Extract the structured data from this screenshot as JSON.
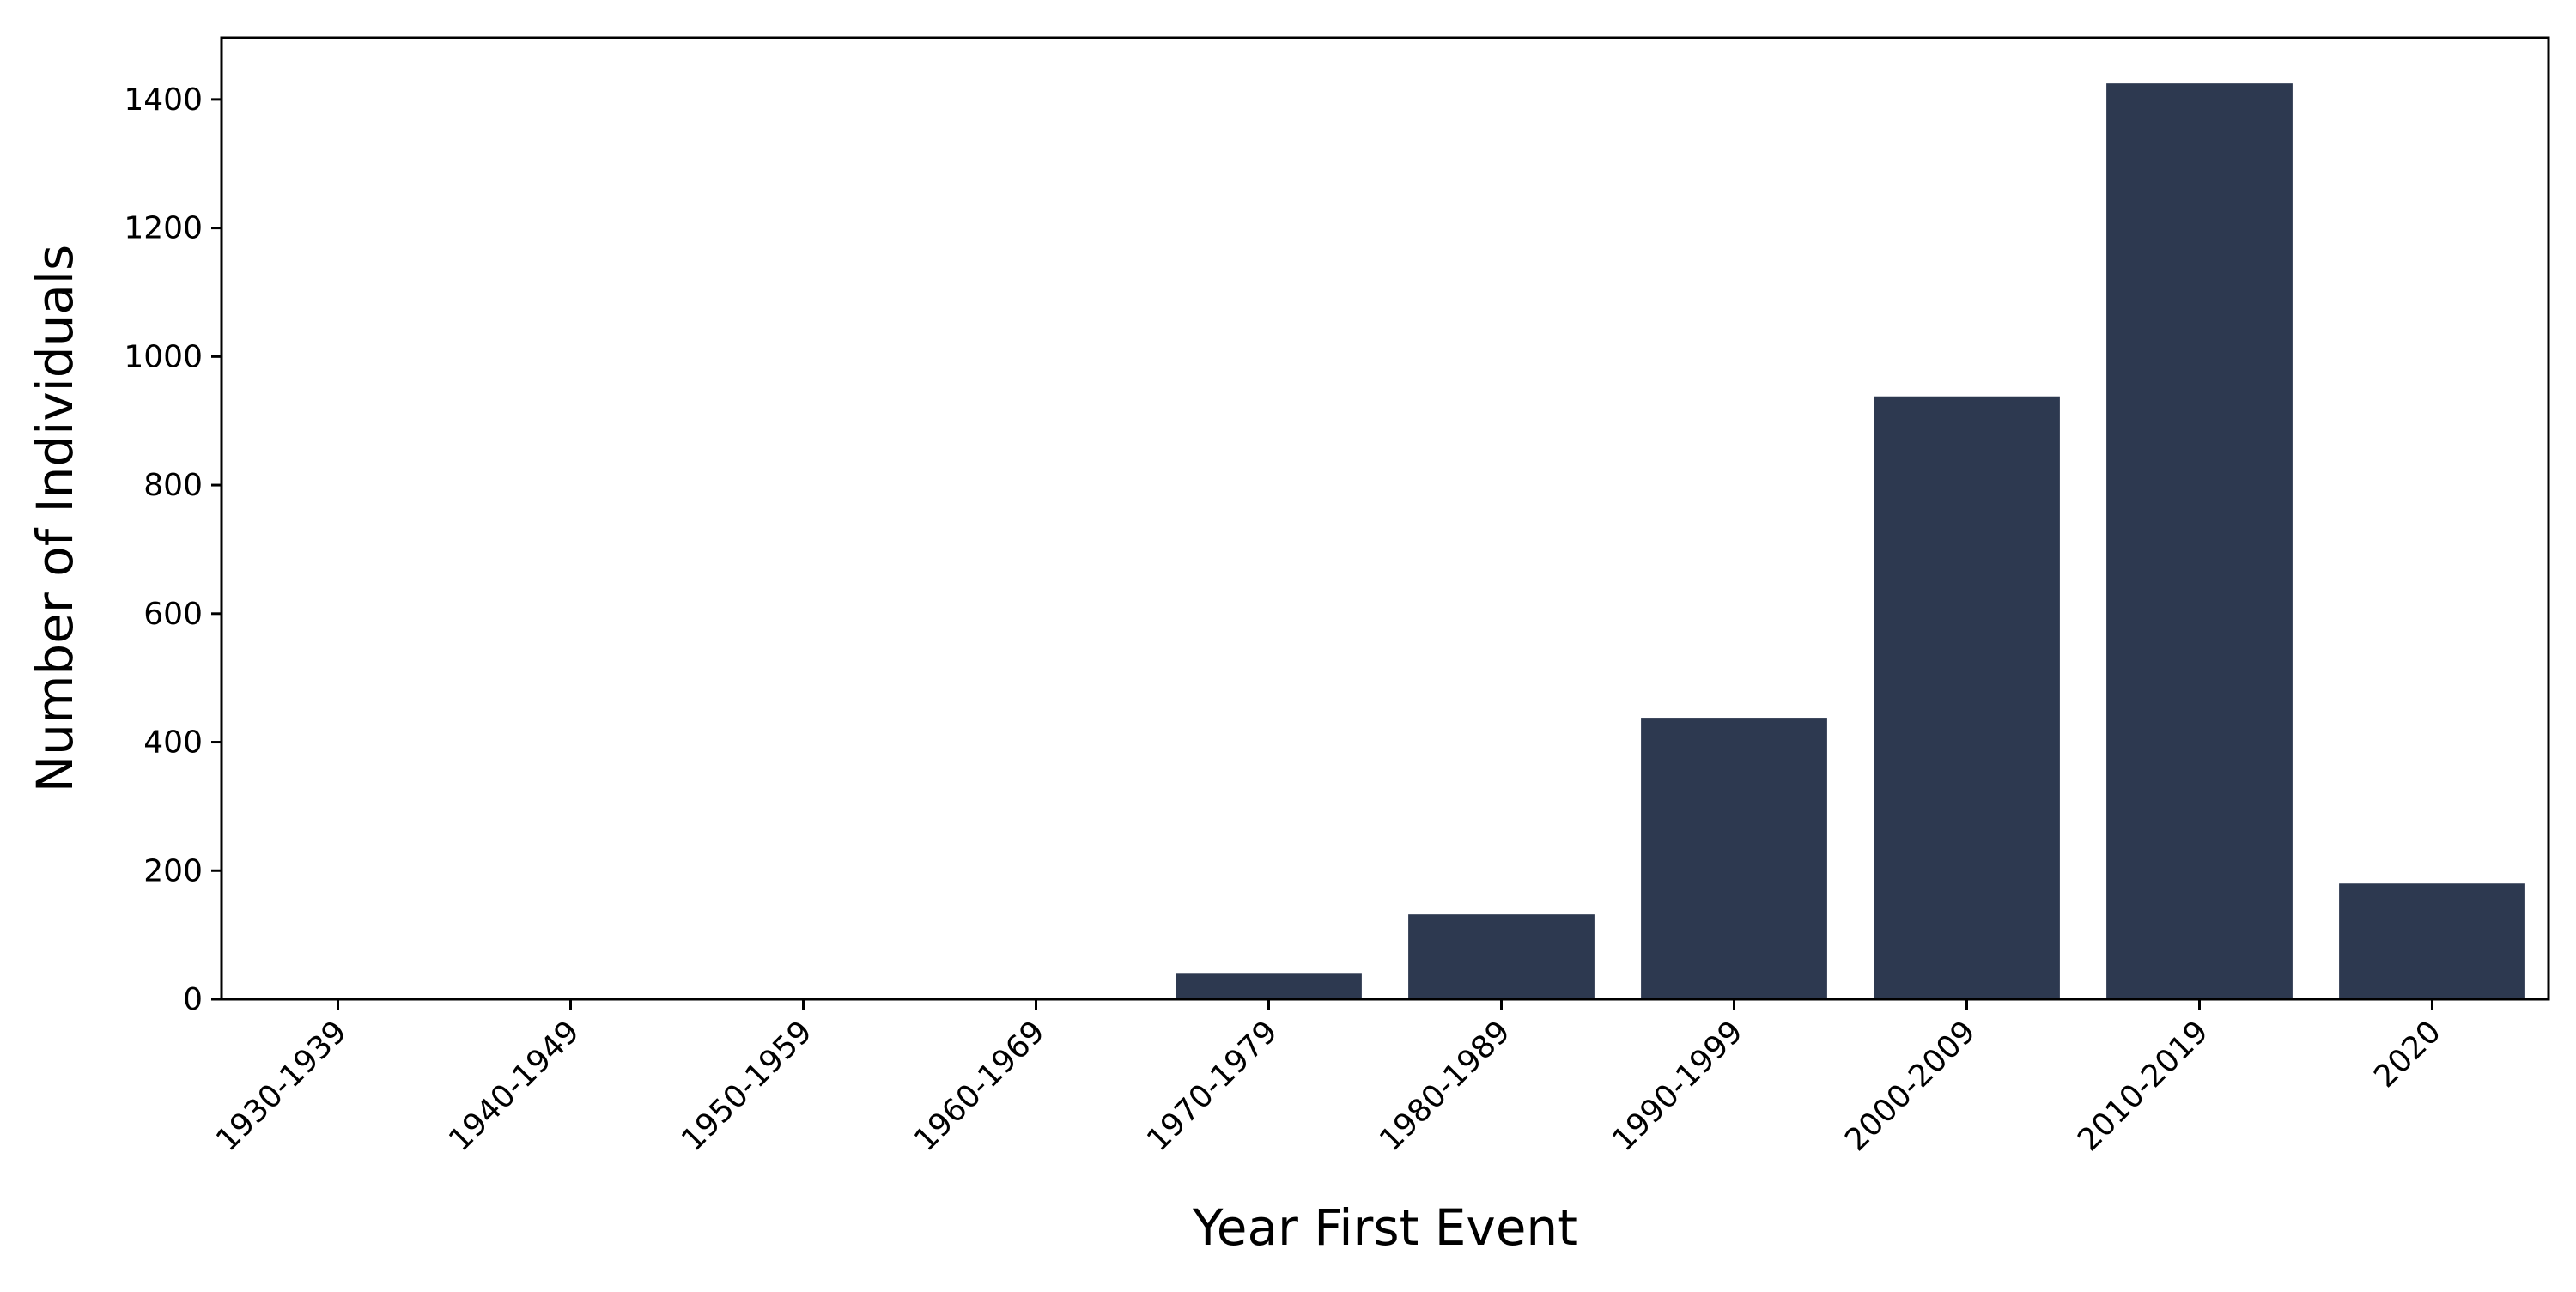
{
  "chart_data": {
    "type": "bar",
    "title": "",
    "xlabel": "Year First Event",
    "ylabel": "Number of Individuals",
    "categories": [
      "1930-1939",
      "1940-1949",
      "1950-1959",
      "1960-1969",
      "1970-1979",
      "1980-1989",
      "1990-1999",
      "2000-2009",
      "2010-2019",
      "2020"
    ],
    "values": [
      0,
      0,
      0,
      2,
      41,
      132,
      438,
      938,
      1425,
      180
    ],
    "ylim": [
      0,
      1496
    ],
    "yticks": [
      0,
      200,
      400,
      600,
      800,
      1000,
      1200,
      1400
    ],
    "grid": false,
    "legend": "none",
    "bar_color": "#2d3950"
  }
}
